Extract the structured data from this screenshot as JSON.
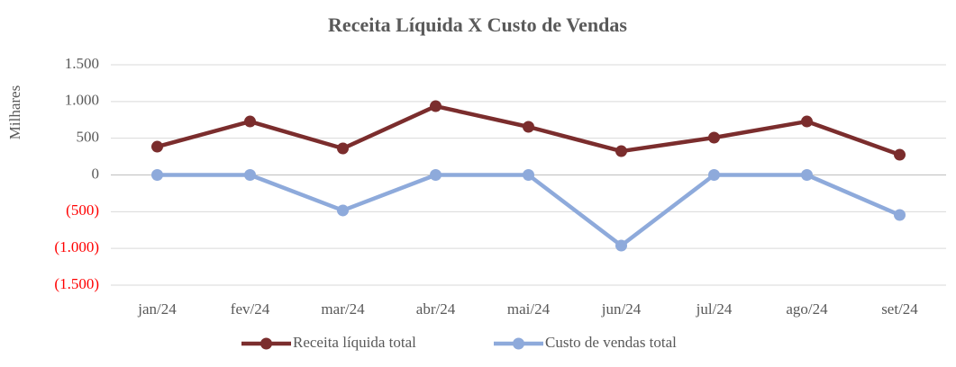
{
  "chart_data": {
    "type": "line",
    "title": "Receita Líquida X Custo de Vendas",
    "y_label": "Milhares",
    "categories": [
      "jan/24",
      "fev/24",
      "mar/24",
      "abr/24",
      "mai/24",
      "jun/24",
      "jul/24",
      "ago/24",
      "set/24"
    ],
    "series": [
      {
        "name": "Receita líquida total",
        "color": "#7b2d2d",
        "values": [
          385,
          728,
          361,
          936,
          655,
          324,
          508,
          728,
          275
        ]
      },
      {
        "name": "Custo de vendas total",
        "color": "#8eaadb",
        "values": [
          0,
          0,
          -483,
          0,
          0,
          -961,
          0,
          0,
          -545
        ]
      }
    ],
    "ylim": [
      -1500,
      1500
    ],
    "yticks": [
      {
        "value": -1500,
        "label": "(1.500)"
      },
      {
        "value": -1000,
        "label": "(1.000)"
      },
      {
        "value": -500,
        "label": "(500)"
      },
      0,
      500,
      {
        "value": 1000,
        "label": "1.000"
      },
      {
        "value": 1500,
        "label": "1.500"
      }
    ],
    "negative_tick_color": "#ff0000",
    "grid": true,
    "legend": "bottom"
  }
}
